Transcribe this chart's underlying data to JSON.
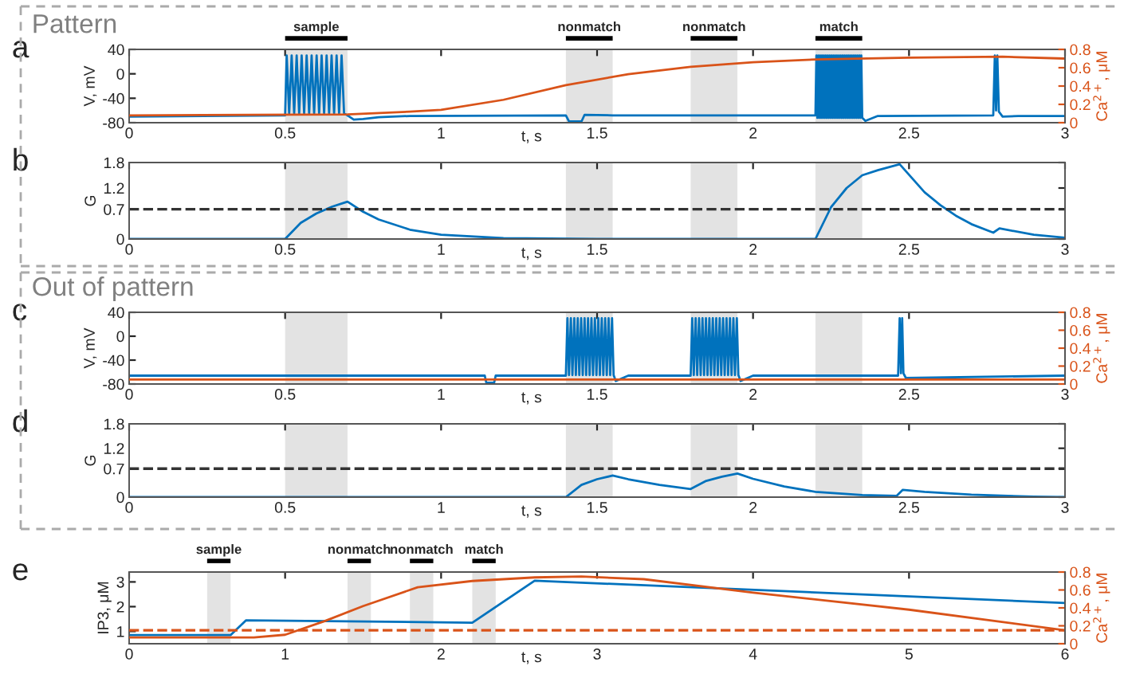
{
  "chart_data": [
    {
      "type": "line",
      "title": "a",
      "annotations": [
        "Pattern"
      ],
      "xlabel": "t, s",
      "ylabel": "V, mV",
      "y2label": "Ca$^{2+}$, μM",
      "xlim": [
        0,
        3
      ],
      "xticks": [
        0,
        0.5,
        1,
        1.5,
        2,
        2.5,
        3
      ],
      "ylim": [
        -80,
        40
      ],
      "yticks": [
        -80,
        -40,
        0,
        40
      ],
      "y2lim": [
        0,
        0.8
      ],
      "y2ticks": [
        0,
        0.2,
        0.4,
        0.6,
        0.8
      ],
      "bands": [
        {
          "axis": "x",
          "from": 0.5,
          "to": 0.7,
          "label": "sample",
          "color": "#e3e3e3"
        },
        {
          "axis": "x",
          "from": 1.4,
          "to": 1.55,
          "label": "nonmatch",
          "color": "#e3e3e3"
        },
        {
          "axis": "x",
          "from": 1.8,
          "to": 1.95,
          "label": "nonmatch",
          "color": "#e3e3e3"
        },
        {
          "axis": "x",
          "from": 2.2,
          "to": 2.35,
          "label": "match",
          "color": "#e3e3e3"
        }
      ],
      "series": [
        {
          "color": "#0072bd",
          "x": [
            0,
            0.5,
            0.505,
            0.513,
            0.521,
            0.529,
            0.537,
            0.545,
            0.553,
            0.561,
            0.569,
            0.577,
            0.585,
            0.593,
            0.601,
            0.609,
            0.617,
            0.625,
            0.633,
            0.641,
            0.649,
            0.657,
            0.665,
            0.673,
            0.681,
            0.689,
            0.7,
            0.72,
            0.75,
            0.8,
            0.9,
            1.4,
            1.41,
            1.45,
            1.46,
            1.55,
            2.2,
            2.203,
            2.206,
            2.209,
            2.212,
            2.215,
            2.218,
            2.221,
            2.224,
            2.227,
            2.23,
            2.233,
            2.236,
            2.239,
            2.242,
            2.245,
            2.248,
            2.251,
            2.254,
            2.257,
            2.26,
            2.263,
            2.266,
            2.269,
            2.272,
            2.275,
            2.278,
            2.281,
            2.284,
            2.287,
            2.29,
            2.293,
            2.296,
            2.299,
            2.302,
            2.305,
            2.308,
            2.311,
            2.314,
            2.317,
            2.32,
            2.323,
            2.326,
            2.329,
            2.332,
            2.335,
            2.338,
            2.341,
            2.344,
            2.347,
            2.35,
            2.36,
            2.4,
            2.77,
            2.775,
            2.779,
            2.783,
            2.788,
            2.8,
            2.85,
            3
          ],
          "values": [
            -70,
            -68,
            30,
            -65,
            30,
            -65,
            30,
            -65,
            30,
            -65,
            30,
            -65,
            30,
            -65,
            30,
            -65,
            30,
            -65,
            30,
            -65,
            30,
            -65,
            30,
            -65,
            30,
            -65,
            -68,
            -75,
            -74,
            -71,
            -69,
            -68,
            -78,
            -78,
            -67,
            -68,
            -68,
            30,
            -72,
            30,
            -72,
            30,
            -72,
            30,
            -72,
            30,
            -72,
            30,
            -72,
            30,
            -72,
            30,
            -72,
            30,
            -72,
            30,
            -72,
            30,
            -72,
            30,
            -72,
            30,
            -72,
            30,
            -72,
            30,
            -72,
            30,
            -72,
            30,
            -72,
            30,
            -72,
            30,
            -72,
            30,
            -72,
            30,
            -72,
            30,
            -72,
            30,
            -72,
            30,
            -72,
            30,
            -72,
            -77,
            -69,
            -68,
            30,
            -60,
            30,
            -62,
            -70,
            -69,
            -69
          ]
        },
        {
          "color": "#d95319",
          "axis": "y2",
          "x": [
            0,
            0.7,
            0.9,
            1.0,
            1.2,
            1.4,
            1.6,
            1.8,
            2.0,
            2.2,
            2.5,
            2.8,
            3
          ],
          "values": [
            0.08,
            0.09,
            0.12,
            0.14,
            0.25,
            0.41,
            0.53,
            0.61,
            0.66,
            0.69,
            0.71,
            0.72,
            0.7
          ]
        }
      ]
    },
    {
      "type": "line",
      "title": "b",
      "xlabel": "t, s",
      "ylabel": "G",
      "xlim": [
        0,
        3
      ],
      "xticks": [
        0,
        0.5,
        1,
        1.5,
        2,
        2.5,
        3
      ],
      "ylim": [
        0,
        1.8
      ],
      "yticks": [
        0,
        0.7,
        1.2,
        1.8
      ],
      "bands": [
        {
          "axis": "x",
          "from": 0.5,
          "to": 0.7,
          "color": "#e3e3e3"
        },
        {
          "axis": "x",
          "from": 1.4,
          "to": 1.55,
          "color": "#e3e3e3"
        },
        {
          "axis": "x",
          "from": 1.8,
          "to": 1.95,
          "color": "#e3e3e3"
        },
        {
          "axis": "x",
          "from": 2.2,
          "to": 2.35,
          "color": "#e3e3e3"
        }
      ],
      "ref_lines": [
        {
          "axis": "y",
          "value": 0.7,
          "color": "#333333",
          "line_style": "dashed"
        }
      ],
      "series": [
        {
          "color": "#0072bd",
          "x": [
            0,
            0.5,
            0.55,
            0.6,
            0.65,
            0.7,
            0.75,
            0.8,
            0.9,
            1.0,
            1.2,
            1.5,
            2.2,
            2.25,
            2.3,
            2.35,
            2.4,
            2.47,
            2.55,
            2.6,
            2.65,
            2.7,
            2.77,
            2.79,
            2.9,
            3
          ],
          "values": [
            0,
            0,
            0.38,
            0.6,
            0.76,
            0.88,
            0.64,
            0.46,
            0.22,
            0.1,
            0.02,
            0,
            0,
            0.75,
            1.2,
            1.5,
            1.62,
            1.76,
            1.1,
            0.8,
            0.55,
            0.35,
            0.15,
            0.25,
            0.1,
            0.03
          ]
        }
      ]
    },
    {
      "type": "line",
      "title": "c",
      "annotations": [
        "Out of pattern"
      ],
      "xlabel": "t, s",
      "ylabel": "V, mV",
      "y2label": "Ca$^{2+}$, μM",
      "xlim": [
        0,
        3
      ],
      "xticks": [
        0,
        0.5,
        1,
        1.5,
        2,
        2.5,
        3
      ],
      "ylim": [
        -80,
        40
      ],
      "yticks": [
        -80,
        -40,
        0,
        40
      ],
      "y2lim": [
        0,
        0.8
      ],
      "y2ticks": [
        0,
        0.2,
        0.4,
        0.6,
        0.8
      ],
      "bands": [
        {
          "axis": "x",
          "from": 0.5,
          "to": 0.7,
          "color": "#e3e3e3"
        },
        {
          "axis": "x",
          "from": 1.4,
          "to": 1.55,
          "color": "#e3e3e3"
        },
        {
          "axis": "x",
          "from": 1.8,
          "to": 1.95,
          "color": "#e3e3e3"
        },
        {
          "axis": "x",
          "from": 2.2,
          "to": 2.35,
          "color": "#e3e3e3"
        }
      ],
      "series": [
        {
          "color": "#0072bd",
          "x": [
            0,
            1.14,
            1.145,
            1.17,
            1.175,
            1.4,
            1.405,
            1.41,
            1.416,
            1.421,
            1.427,
            1.432,
            1.438,
            1.443,
            1.449,
            1.454,
            1.46,
            1.465,
            1.471,
            1.476,
            1.482,
            1.487,
            1.493,
            1.498,
            1.504,
            1.509,
            1.515,
            1.52,
            1.526,
            1.531,
            1.537,
            1.542,
            1.548,
            1.553,
            1.56,
            1.6,
            1.8,
            1.805,
            1.81,
            1.816,
            1.821,
            1.827,
            1.832,
            1.838,
            1.843,
            1.849,
            1.854,
            1.86,
            1.865,
            1.871,
            1.876,
            1.882,
            1.887,
            1.893,
            1.898,
            1.904,
            1.909,
            1.915,
            1.92,
            1.926,
            1.931,
            1.937,
            1.942,
            1.948,
            1.953,
            1.96,
            2.0,
            2.465,
            2.47,
            2.474,
            2.478,
            2.482,
            2.49,
            3
          ],
          "values": [
            -66,
            -66,
            -78,
            -78,
            -66,
            -66,
            30,
            -65,
            30,
            -65,
            30,
            -65,
            30,
            -65,
            30,
            -65,
            30,
            -65,
            30,
            -65,
            30,
            -65,
            30,
            -65,
            30,
            -65,
            30,
            -65,
            30,
            -65,
            30,
            -65,
            30,
            -65,
            -75,
            -66,
            -66,
            30,
            -65,
            30,
            -65,
            30,
            -65,
            30,
            -65,
            30,
            -65,
            30,
            -65,
            30,
            -65,
            30,
            -65,
            30,
            -65,
            30,
            -65,
            30,
            -65,
            30,
            -65,
            30,
            -65,
            30,
            -65,
            -75,
            -66,
            -66,
            30,
            -62,
            30,
            -62,
            -70,
            -66
          ]
        },
        {
          "color": "#d95319",
          "axis": "y2",
          "x": [
            0,
            3
          ],
          "values": [
            0.05,
            0.05
          ]
        }
      ]
    },
    {
      "type": "line",
      "title": "d",
      "xlabel": "t, s",
      "ylabel": "G",
      "xlim": [
        0,
        3
      ],
      "xticks": [
        0,
        0.5,
        1,
        1.5,
        2,
        2.5,
        3
      ],
      "ylim": [
        0,
        1.8
      ],
      "yticks": [
        0,
        0.7,
        1.2,
        1.8
      ],
      "bands": [
        {
          "axis": "x",
          "from": 0.5,
          "to": 0.7,
          "color": "#e3e3e3"
        },
        {
          "axis": "x",
          "from": 1.4,
          "to": 1.55,
          "color": "#e3e3e3"
        },
        {
          "axis": "x",
          "from": 1.8,
          "to": 1.95,
          "color": "#e3e3e3"
        },
        {
          "axis": "x",
          "from": 2.2,
          "to": 2.35,
          "color": "#e3e3e3"
        }
      ],
      "ref_lines": [
        {
          "axis": "y",
          "value": 0.7,
          "color": "#333333",
          "line_style": "dashed"
        }
      ],
      "series": [
        {
          "color": "#0072bd",
          "x": [
            0,
            1.4,
            1.45,
            1.5,
            1.55,
            1.6,
            1.7,
            1.8,
            1.85,
            1.9,
            1.95,
            2.0,
            2.1,
            2.2,
            2.35,
            2.46,
            2.48,
            2.55,
            2.7,
            2.9,
            3
          ],
          "values": [
            0,
            0,
            0.3,
            0.44,
            0.53,
            0.44,
            0.3,
            0.2,
            0.4,
            0.5,
            0.58,
            0.45,
            0.26,
            0.13,
            0.05,
            0.03,
            0.18,
            0.13,
            0.06,
            0.01,
            0
          ]
        }
      ]
    },
    {
      "type": "line",
      "title": "e",
      "xlabel": "t, s",
      "ylabel": "IP3, μM",
      "y2label": "Ca$^{2+}$, μM",
      "xlim": [
        0,
        6
      ],
      "xticks": [
        0,
        1,
        2,
        3,
        4,
        5,
        6
      ],
      "ylim": [
        0.5,
        3.4
      ],
      "yticks": [
        1,
        2,
        3
      ],
      "y2lim": [
        0,
        0.8
      ],
      "y2ticks": [
        0,
        0.2,
        0.4,
        0.6,
        0.8
      ],
      "bands": [
        {
          "axis": "x",
          "from": 0.5,
          "to": 0.65,
          "label": "sample",
          "color": "#e3e3e3"
        },
        {
          "axis": "x",
          "from": 1.4,
          "to": 1.55,
          "label": "nonmatch",
          "color": "#e3e3e3"
        },
        {
          "axis": "x",
          "from": 1.8,
          "to": 1.95,
          "label": "nonmatch",
          "color": "#e3e3e3"
        },
        {
          "axis": "x",
          "from": 2.2,
          "to": 2.35,
          "label": "match",
          "color": "#e3e3e3"
        }
      ],
      "ref_lines": [
        {
          "axis": "y2",
          "value": 0.15,
          "color": "#d95319",
          "line_style": "dashed"
        }
      ],
      "series": [
        {
          "color": "#0072bd",
          "x": [
            0,
            0.65,
            0.75,
            2.2,
            2.6,
            6
          ],
          "values": [
            0.85,
            0.85,
            1.45,
            1.35,
            3.05,
            2.15
          ]
        },
        {
          "color": "#d95319",
          "axis": "y2",
          "x": [
            0,
            0.8,
            1.0,
            1.25,
            1.5,
            1.85,
            2.2,
            2.6,
            2.9,
            3.3,
            4,
            5,
            6
          ],
          "values": [
            0.07,
            0.07,
            0.1,
            0.25,
            0.42,
            0.63,
            0.7,
            0.74,
            0.75,
            0.72,
            0.57,
            0.38,
            0.15
          ]
        }
      ]
    }
  ]
}
